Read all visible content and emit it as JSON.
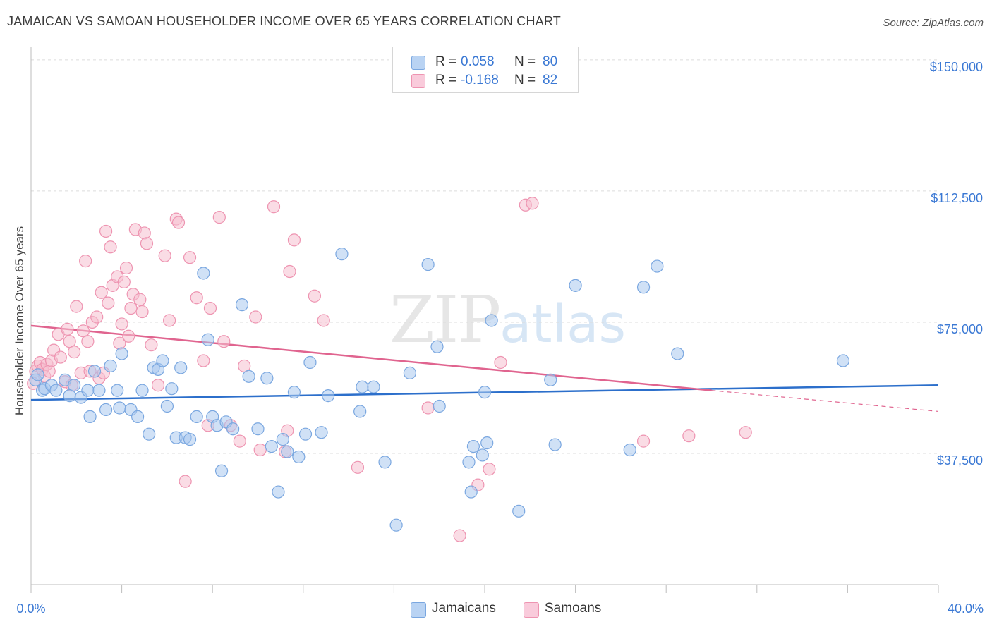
{
  "title": "JAMAICAN VS SAMOAN HOUSEHOLDER INCOME OVER 65 YEARS CORRELATION CHART",
  "source": "Source: ZipAtlas.com",
  "watermark": {
    "zip": "ZIP",
    "atlas": "atlas"
  },
  "legend": {
    "rows": [
      {
        "r_label": "R =",
        "r_value": "0.058",
        "n_label": "N =",
        "n_value": "80"
      },
      {
        "r_label": "R =",
        "r_value": "-0.168",
        "n_label": "N =",
        "n_value": "82"
      }
    ]
  },
  "bottom_legend": {
    "jamaicans": "Jamaicans",
    "samoans": "Samoans"
  },
  "colors": {
    "jamaicans_fill": "#a9c8ef",
    "jamaicans_stroke": "#7aa7e0",
    "jamaicans_line": "#2c6fcb",
    "samoans_fill": "#f6bfd0",
    "samoans_stroke": "#ee94b1",
    "samoans_line": "#e0648f",
    "tick_label": "#3a78d4"
  },
  "chart_data": {
    "type": "scatter",
    "title": "JAMAICAN VS SAMOAN HOUSEHOLDER INCOME OVER 65 YEARS CORRELATION CHART",
    "xlabel": "",
    "ylabel": "Householder Income Over 65 years",
    "xlim": [
      0,
      40
    ],
    "ylim": [
      0,
      153000
    ],
    "x_tick_labels": [
      "0.0%",
      "40.0%"
    ],
    "y_ticks": [
      37500,
      75000,
      112500,
      150000
    ],
    "y_tick_labels": [
      "$37,500",
      "$75,000",
      "$112,500",
      "$150,000"
    ],
    "grid": true,
    "legend_position": "top-center",
    "series": [
      {
        "name": "Jamaicans",
        "r": 0.058,
        "n": 80,
        "trend": {
          "x": [
            0,
            40
          ],
          "y": [
            52800,
            57000
          ]
        },
        "points": [
          [
            0.2,
            58500
          ],
          [
            0.3,
            60000
          ],
          [
            0.5,
            55500
          ],
          [
            0.6,
            56000
          ],
          [
            0.9,
            57000
          ],
          [
            1.1,
            55500
          ],
          [
            1.5,
            58500
          ],
          [
            1.7,
            54000
          ],
          [
            1.9,
            57000
          ],
          [
            2.2,
            53500
          ],
          [
            2.5,
            55500
          ],
          [
            2.6,
            48000
          ],
          [
            2.8,
            61000
          ],
          [
            3.0,
            55500
          ],
          [
            3.3,
            50000
          ],
          [
            3.5,
            62500
          ],
          [
            3.8,
            55500
          ],
          [
            3.9,
            50500
          ],
          [
            4.0,
            66000
          ],
          [
            4.4,
            50000
          ],
          [
            4.7,
            48000
          ],
          [
            4.9,
            55500
          ],
          [
            5.2,
            43000
          ],
          [
            5.4,
            62000
          ],
          [
            5.6,
            61500
          ],
          [
            5.8,
            64000
          ],
          [
            6.0,
            51000
          ],
          [
            6.2,
            56000
          ],
          [
            6.4,
            42000
          ],
          [
            6.6,
            62000
          ],
          [
            6.8,
            42000
          ],
          [
            7.0,
            41500
          ],
          [
            7.3,
            48000
          ],
          [
            7.6,
            89000
          ],
          [
            7.8,
            70000
          ],
          [
            8.0,
            48000
          ],
          [
            8.2,
            45500
          ],
          [
            8.4,
            32500
          ],
          [
            8.6,
            46500
          ],
          [
            8.9,
            44500
          ],
          [
            9.3,
            80000
          ],
          [
            9.6,
            59500
          ],
          [
            10.0,
            44500
          ],
          [
            10.4,
            59000
          ],
          [
            10.6,
            39500
          ],
          [
            10.9,
            26500
          ],
          [
            11.1,
            41500
          ],
          [
            11.3,
            38000
          ],
          [
            11.6,
            55000
          ],
          [
            11.8,
            36500
          ],
          [
            12.1,
            43000
          ],
          [
            12.3,
            63500
          ],
          [
            12.8,
            43500
          ],
          [
            13.1,
            54000
          ],
          [
            13.7,
            94500
          ],
          [
            14.5,
            49500
          ],
          [
            14.6,
            56500
          ],
          [
            15.1,
            56500
          ],
          [
            15.6,
            35000
          ],
          [
            16.1,
            17000
          ],
          [
            16.7,
            60500
          ],
          [
            17.5,
            91500
          ],
          [
            17.9,
            68000
          ],
          [
            18.0,
            51000
          ],
          [
            19.3,
            35000
          ],
          [
            19.4,
            26500
          ],
          [
            19.5,
            39500
          ],
          [
            19.9,
            37000
          ],
          [
            20.0,
            55000
          ],
          [
            20.1,
            40500
          ],
          [
            20.3,
            75500
          ],
          [
            21.5,
            21000
          ],
          [
            22.9,
            58500
          ],
          [
            23.1,
            40000
          ],
          [
            24.0,
            85500
          ],
          [
            26.4,
            38500
          ],
          [
            27.0,
            85000
          ],
          [
            27.6,
            91000
          ],
          [
            28.5,
            66000
          ],
          [
            35.8,
            64000
          ]
        ]
      },
      {
        "name": "Samoans",
        "r": -0.168,
        "n": 82,
        "trend": {
          "x": [
            0,
            30
          ],
          "y": [
            74000,
            55500
          ]
        },
        "trend_dashed": {
          "x": [
            30,
            40
          ],
          "y": [
            55500,
            49500
          ]
        },
        "points": [
          [
            0.1,
            57500
          ],
          [
            0.2,
            61000
          ],
          [
            0.3,
            62500
          ],
          [
            0.4,
            63500
          ],
          [
            0.5,
            61500
          ],
          [
            0.6,
            59500
          ],
          [
            0.7,
            63000
          ],
          [
            0.8,
            61000
          ],
          [
            0.9,
            64000
          ],
          [
            1.0,
            67000
          ],
          [
            1.2,
            71500
          ],
          [
            1.3,
            65000
          ],
          [
            1.5,
            58000
          ],
          [
            1.6,
            73000
          ],
          [
            1.7,
            69500
          ],
          [
            1.8,
            57000
          ],
          [
            1.9,
            66500
          ],
          [
            2.0,
            79500
          ],
          [
            2.2,
            60500
          ],
          [
            2.3,
            72500
          ],
          [
            2.4,
            92500
          ],
          [
            2.5,
            69500
          ],
          [
            2.6,
            61000
          ],
          [
            2.7,
            75000
          ],
          [
            2.9,
            76500
          ],
          [
            3.0,
            59000
          ],
          [
            3.1,
            83500
          ],
          [
            3.2,
            60500
          ],
          [
            3.3,
            101000
          ],
          [
            3.4,
            80500
          ],
          [
            3.5,
            96500
          ],
          [
            3.6,
            85500
          ],
          [
            3.8,
            88000
          ],
          [
            3.9,
            69000
          ],
          [
            4.0,
            74500
          ],
          [
            4.1,
            86500
          ],
          [
            4.2,
            90500
          ],
          [
            4.3,
            71000
          ],
          [
            4.4,
            79000
          ],
          [
            4.5,
            83000
          ],
          [
            4.6,
            101500
          ],
          [
            4.8,
            81500
          ],
          [
            4.9,
            78000
          ],
          [
            5.0,
            100500
          ],
          [
            5.1,
            97500
          ],
          [
            5.3,
            68500
          ],
          [
            5.6,
            57000
          ],
          [
            5.9,
            94000
          ],
          [
            6.1,
            75500
          ],
          [
            6.4,
            104500
          ],
          [
            6.5,
            103500
          ],
          [
            6.8,
            29500
          ],
          [
            7.0,
            93500
          ],
          [
            7.3,
            82000
          ],
          [
            7.6,
            64000
          ],
          [
            7.8,
            45500
          ],
          [
            7.9,
            79000
          ],
          [
            8.3,
            105000
          ],
          [
            8.5,
            69500
          ],
          [
            8.8,
            45500
          ],
          [
            9.2,
            41000
          ],
          [
            9.4,
            62500
          ],
          [
            9.9,
            76500
          ],
          [
            10.1,
            38500
          ],
          [
            10.7,
            108000
          ],
          [
            11.2,
            38000
          ],
          [
            11.3,
            44000
          ],
          [
            11.4,
            89500
          ],
          [
            11.6,
            98500
          ],
          [
            12.5,
            82500
          ],
          [
            12.9,
            75500
          ],
          [
            14.4,
            33500
          ],
          [
            17.5,
            50500
          ],
          [
            18.9,
            14000
          ],
          [
            19.7,
            28500
          ],
          [
            20.2,
            33000
          ],
          [
            20.7,
            63500
          ],
          [
            21.8,
            108500
          ],
          [
            22.1,
            109000
          ],
          [
            27.0,
            41000
          ],
          [
            29.0,
            42500
          ],
          [
            31.5,
            43500
          ]
        ]
      }
    ]
  }
}
